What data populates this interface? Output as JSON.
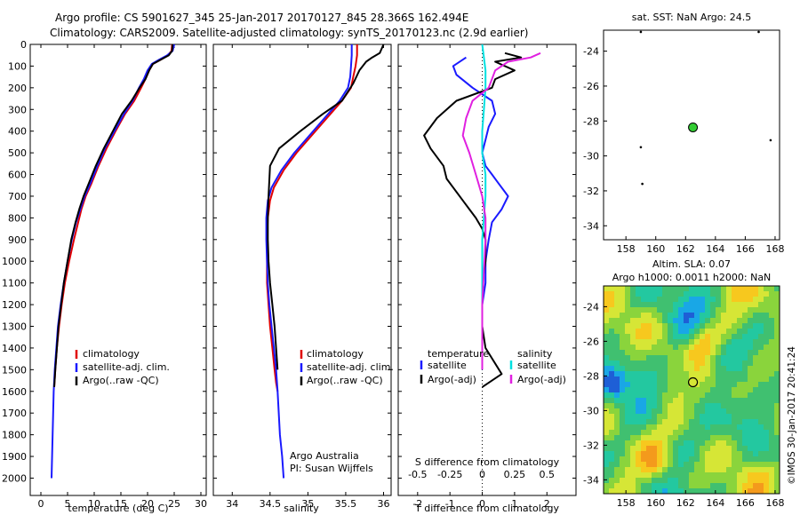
{
  "header": {
    "line1": "Argo profile: CS 5901627_345 25-Jan-2017 20170127_845 28.366S 162.494E",
    "line2": "Climatology: CARS2009. Satellite-adjusted climatology: synTS_20170123.nc (2.9d earlier)"
  },
  "colors": {
    "climatology": "#e00000",
    "satellite": "#1a1aff",
    "argo": "#000000",
    "salinity_satellite": "#00e0e0",
    "salinity_argo": "#e020e0"
  },
  "chart_data": [
    {
      "type": "line",
      "id": "temperature",
      "xlabel": "temperature (deg C)",
      "xlim": [
        -2,
        31
      ],
      "xticks": [
        0,
        5,
        10,
        15,
        20,
        25,
        30
      ],
      "ylim": [
        2080,
        0
      ],
      "yticks": [
        0,
        100,
        200,
        300,
        400,
        500,
        600,
        700,
        800,
        900,
        1000,
        1100,
        1200,
        1300,
        1400,
        1500,
        1600,
        1700,
        1800,
        1900,
        2000
      ],
      "legend": [
        "climatology",
        "satellite-adj. clim.",
        "Argo(..raw -QC)"
      ],
      "series": [
        {
          "name": "climatology",
          "color": "#e00000",
          "x": [
            24.6,
            24.5,
            23.8,
            22.5,
            21.0,
            20.3,
            19.6,
            18.8,
            17.5,
            15.8,
            14.0,
            12.3,
            10.8,
            9.5,
            8.4,
            7.6,
            7.0,
            6.2,
            5.3,
            4.5,
            3.9,
            3.4,
            3.0,
            2.7,
            2.5
          ],
          "y": [
            0,
            30,
            50,
            70,
            90,
            120,
            160,
            200,
            260,
            320,
            400,
            480,
            560,
            640,
            700,
            760,
            820,
            900,
            1000,
            1100,
            1200,
            1300,
            1400,
            1500,
            1580
          ]
        },
        {
          "name": "satellite-adj. clim.",
          "color": "#1a1aff",
          "x": [
            25.0,
            24.7,
            23.7,
            22.2,
            20.8,
            20.0,
            19.3,
            18.4,
            17.2,
            15.6,
            13.8,
            12.0,
            10.6,
            9.3,
            8.2,
            7.4,
            6.6,
            5.8,
            5.0,
            4.3,
            3.7,
            3.2,
            2.9,
            2.6,
            2.4,
            2.2,
            2.1,
            2.0
          ],
          "y": [
            0,
            30,
            50,
            70,
            90,
            120,
            160,
            200,
            260,
            320,
            400,
            480,
            560,
            640,
            700,
            760,
            820,
            900,
            1000,
            1100,
            1200,
            1300,
            1400,
            1500,
            1600,
            1800,
            1900,
            2000
          ]
        },
        {
          "name": "Argo(..raw -QC)",
          "color": "#000000",
          "x": [
            24.7,
            24.6,
            24.0,
            22.5,
            21.0,
            20.3,
            19.6,
            18.5,
            17.0,
            15.2,
            13.5,
            11.8,
            10.3,
            9.0,
            8.0,
            7.2,
            6.5,
            5.7,
            5.0,
            4.3,
            3.8,
            3.3,
            3.0,
            2.7,
            2.5
          ],
          "y": [
            0,
            30,
            50,
            70,
            90,
            120,
            160,
            200,
            260,
            320,
            400,
            480,
            560,
            640,
            700,
            760,
            820,
            900,
            1000,
            1100,
            1200,
            1300,
            1400,
            1500,
            1580
          ]
        }
      ]
    },
    {
      "type": "line",
      "id": "salinity",
      "xlabel": "salinity",
      "xlim": [
        33.75,
        36.1
      ],
      "xticks": [
        34,
        34.5,
        35,
        35.5,
        36
      ],
      "ylim": [
        2080,
        0
      ],
      "legend": [
        "climatology",
        "satellite-adj. clim.",
        "Argo(..raw -QC)"
      ],
      "annotation": [
        "Argo Australia",
        "PI: Susan Wijffels"
      ],
      "series": [
        {
          "name": "climatology",
          "color": "#e00000",
          "x": [
            35.65,
            35.65,
            35.63,
            35.6,
            35.57,
            35.45,
            35.25,
            35.05,
            34.85,
            34.68,
            34.55,
            34.5,
            34.47,
            34.46,
            34.46,
            34.46,
            34.48,
            34.5,
            34.53,
            34.56,
            34.58,
            34.6
          ],
          "y": [
            0,
            50,
            100,
            150,
            200,
            260,
            340,
            420,
            500,
            580,
            660,
            720,
            800,
            900,
            1000,
            1100,
            1200,
            1300,
            1400,
            1500,
            1560,
            1600
          ]
        },
        {
          "name": "satellite-adj. clim.",
          "color": "#1a1aff",
          "x": [
            35.58,
            35.58,
            35.57,
            35.56,
            35.53,
            35.42,
            35.22,
            35.02,
            34.82,
            34.65,
            34.52,
            34.47,
            34.45,
            34.45,
            34.46,
            34.47,
            34.49,
            34.52,
            34.55,
            34.58,
            34.6,
            34.63,
            34.66,
            34.68
          ],
          "y": [
            0,
            50,
            100,
            150,
            200,
            260,
            340,
            420,
            500,
            580,
            660,
            720,
            800,
            900,
            1000,
            1100,
            1200,
            1300,
            1400,
            1500,
            1600,
            1800,
            1900,
            2000
          ]
        },
        {
          "name": "Argo(..raw -QC)",
          "color": "#000000",
          "x": [
            36.0,
            35.95,
            35.85,
            35.77,
            35.68,
            35.6,
            35.45,
            35.2,
            34.9,
            34.62,
            34.5,
            34.48,
            34.47,
            34.47,
            34.48,
            34.5,
            34.53,
            34.56,
            34.58,
            34.6
          ],
          "y": [
            0,
            40,
            60,
            80,
            120,
            180,
            260,
            320,
            400,
            480,
            560,
            700,
            800,
            900,
            1000,
            1100,
            1200,
            1300,
            1400,
            1500
          ]
        }
      ]
    },
    {
      "type": "line",
      "id": "difference",
      "xlabel": "T difference from climatology",
      "xlabel_top": "S difference from climatology",
      "xlim": [
        -2.6,
        2.9
      ],
      "xticks": [
        -2,
        -1,
        0,
        1,
        2
      ],
      "s_tick_labels": [
        "-0.5",
        "-0.25",
        "0",
        "0.25",
        "0.5"
      ],
      "s_tick_positions": [
        -2,
        -1,
        0,
        1,
        2
      ],
      "ylim": [
        2080,
        0
      ],
      "legend_temperature": [
        "temperature",
        "satellite",
        "Argo(-adj)"
      ],
      "legend_salinity": [
        "salinity",
        "satellite",
        "Argo(-adj)"
      ],
      "series": [
        {
          "name": "satellite",
          "legend": "temperature",
          "color": "#1a1aff",
          "x": [
            -0.5,
            -0.9,
            -0.8,
            -0.3,
            0.3,
            0.4,
            0.2,
            0.1,
            0.0,
            0.1,
            0.3,
            0.5,
            0.7,
            0.8,
            0.6,
            0.3,
            0.2,
            0.1,
            0.1,
            0.0,
            0.0,
            0.0
          ],
          "y": [
            60,
            100,
            140,
            200,
            260,
            320,
            380,
            440,
            500,
            560,
            600,
            640,
            680,
            700,
            760,
            820,
            900,
            1000,
            1100,
            1200,
            1400,
            1500
          ]
        },
        {
          "name": "Argo(-adj)",
          "legend": "temperature",
          "color": "#000000",
          "x": [
            0.7,
            1.2,
            0.4,
            1.0,
            0.4,
            0.3,
            -0.8,
            -1.4,
            -1.8,
            -1.6,
            -1.2,
            -1.1,
            -0.8,
            -0.6,
            -0.4,
            -0.2,
            0.0,
            0.1,
            0.1,
            0.0,
            0.0,
            0.0,
            0.1,
            0.6,
            0.0
          ],
          "y": [
            40,
            60,
            80,
            120,
            160,
            200,
            260,
            340,
            420,
            480,
            560,
            620,
            680,
            720,
            760,
            800,
            850,
            900,
            1000,
            1100,
            1200,
            1300,
            1400,
            1520,
            1580
          ]
        },
        {
          "name": "satellite",
          "legend": "salinity",
          "color": "#00e0e0",
          "x": [
            0.0,
            0.05,
            0.1,
            0.1,
            0.05,
            0.0,
            0.0,
            0.1,
            0.1,
            0.05,
            0.0,
            0.0,
            0.0
          ],
          "y": [
            0,
            60,
            120,
            200,
            300,
            400,
            500,
            600,
            700,
            800,
            900,
            1000,
            1500
          ]
        },
        {
          "name": "Argo(-adj)",
          "legend": "salinity",
          "color": "#e020e0",
          "x": [
            1.8,
            1.5,
            0.8,
            0.4,
            0.2,
            -0.3,
            -0.5,
            -0.6,
            -0.4,
            -0.2,
            0.0,
            0.1,
            0.1,
            0.0,
            0.0
          ],
          "y": [
            40,
            60,
            80,
            120,
            200,
            260,
            340,
            420,
            500,
            600,
            700,
            800,
            900,
            1200,
            1500
          ]
        }
      ]
    },
    {
      "type": "scatter",
      "id": "sst_map",
      "title": "sat. SST: NaN Argo: 24.5",
      "xlim": [
        156.5,
        168.3
      ],
      "xticks": [
        158,
        160,
        162,
        164,
        166,
        168
      ],
      "ylim": [
        -34.8,
        -22.8
      ],
      "yticks": [
        -24,
        -26,
        -28,
        -30,
        -32,
        -34
      ],
      "profile_location": {
        "lon": 162.494,
        "lat": -28.366,
        "color": "#33cc33"
      },
      "other_points": [
        [
          159.0,
          -29.5
        ],
        [
          159.1,
          -31.6
        ],
        [
          166.9,
          -22.9
        ],
        [
          159.0,
          -22.9
        ],
        [
          167.7,
          -29.1
        ]
      ]
    },
    {
      "type": "heatmap",
      "id": "sla_map",
      "title_line1": "Altim. SLA: 0.07",
      "title_line2": "Argo h1000: 0.0011 h2000: NaN",
      "xlim": [
        156.5,
        168.3
      ],
      "xticks": [
        158,
        160,
        162,
        164,
        166,
        168
      ],
      "ylim": [
        -34.8,
        -22.8
      ],
      "yticks": [
        -24,
        -26,
        -28,
        -30,
        -32,
        -34
      ],
      "profile_location": {
        "lon": 162.494,
        "lat": -28.366
      },
      "palette": [
        "#1e5fd6",
        "#19a7e6",
        "#23c8a0",
        "#40c070",
        "#8ad43c",
        "#d6e636",
        "#f7c81e",
        "#f49a1c"
      ]
    }
  ],
  "credit": "©IMOS 30-Jan-2017 20:41:24"
}
